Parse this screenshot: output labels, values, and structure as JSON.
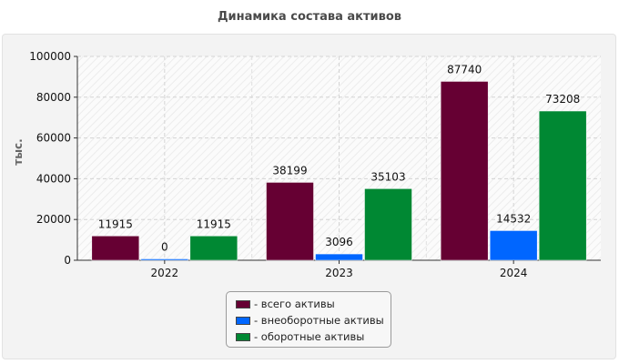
{
  "chart_data": {
    "type": "bar",
    "title": "Динамика состава активов",
    "ylabel": "тыс.",
    "xlabel": "",
    "categories": [
      "2022",
      "2023",
      "2024"
    ],
    "ylim": [
      0,
      100000
    ],
    "yticks": [
      0,
      20000,
      40000,
      60000,
      80000,
      100000
    ],
    "grid": true,
    "legend_position": "bottom-center",
    "series": [
      {
        "name": "- всего активы",
        "color": "#660033",
        "values": [
          11915,
          38199,
          87740
        ]
      },
      {
        "name": "- внеоборотные активы",
        "color": "#0066ff",
        "values": [
          0,
          3096,
          14532
        ]
      },
      {
        "name": "- оборотные активы",
        "color": "#008833",
        "values": [
          11915,
          35103,
          73208
        ]
      }
    ]
  }
}
